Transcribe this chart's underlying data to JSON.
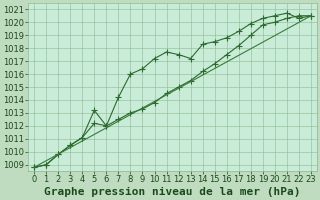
{
  "title": "Graphe pression niveau de la mer (hPa)",
  "background_color": "#c0dcc0",
  "plot_bg_color": "#c8ecd8",
  "grid_color": "#90b890",
  "ylim": [
    1008.5,
    1021.5
  ],
  "xlim": [
    -0.5,
    23.5
  ],
  "yticks": [
    1009,
    1010,
    1011,
    1012,
    1013,
    1014,
    1015,
    1016,
    1017,
    1018,
    1019,
    1020,
    1021
  ],
  "xticks": [
    0,
    1,
    2,
    3,
    4,
    5,
    6,
    7,
    8,
    9,
    10,
    11,
    12,
    13,
    14,
    15,
    16,
    17,
    18,
    19,
    20,
    21,
    22,
    23
  ],
  "line1_x": [
    0,
    1,
    2,
    3,
    4,
    5,
    6,
    7,
    8,
    9,
    10,
    11,
    12,
    13,
    14,
    15,
    16,
    17,
    18,
    19,
    20,
    21,
    22,
    23
  ],
  "line1_y": [
    1008.8,
    1009.0,
    1009.8,
    1010.5,
    1011.1,
    1013.2,
    1012.0,
    1014.2,
    1016.0,
    1016.4,
    1017.2,
    1017.7,
    1017.5,
    1017.2,
    1018.3,
    1018.5,
    1018.8,
    1019.3,
    1019.9,
    1020.3,
    1020.5,
    1020.7,
    1020.3,
    1020.5
  ],
  "line2_x": [
    0,
    1,
    2,
    3,
    4,
    5,
    6,
    7,
    8,
    9,
    10,
    11,
    12,
    13,
    14,
    15,
    16,
    17,
    18,
    19,
    20,
    21,
    22,
    23
  ],
  "line2_y": [
    1008.8,
    1009.0,
    1009.8,
    1010.5,
    1011.1,
    1012.2,
    1012.0,
    1012.5,
    1013.0,
    1013.3,
    1013.8,
    1014.5,
    1015.0,
    1015.5,
    1016.2,
    1016.8,
    1017.5,
    1018.2,
    1019.0,
    1019.8,
    1020.0,
    1020.3,
    1020.5,
    1020.5
  ],
  "line3_x": [
    0,
    23
  ],
  "line3_y": [
    1008.8,
    1020.5
  ],
  "line_color": "#2d6a2d",
  "line_color_thin": "#3a7a3a",
  "marker": "+",
  "marker_size": 5,
  "title_fontsize": 8,
  "tick_fontsize": 6,
  "title_color": "#1a4a1a",
  "tick_color": "#1a4a1a",
  "fig_width": 3.2,
  "fig_height": 2.0,
  "dpi": 100
}
